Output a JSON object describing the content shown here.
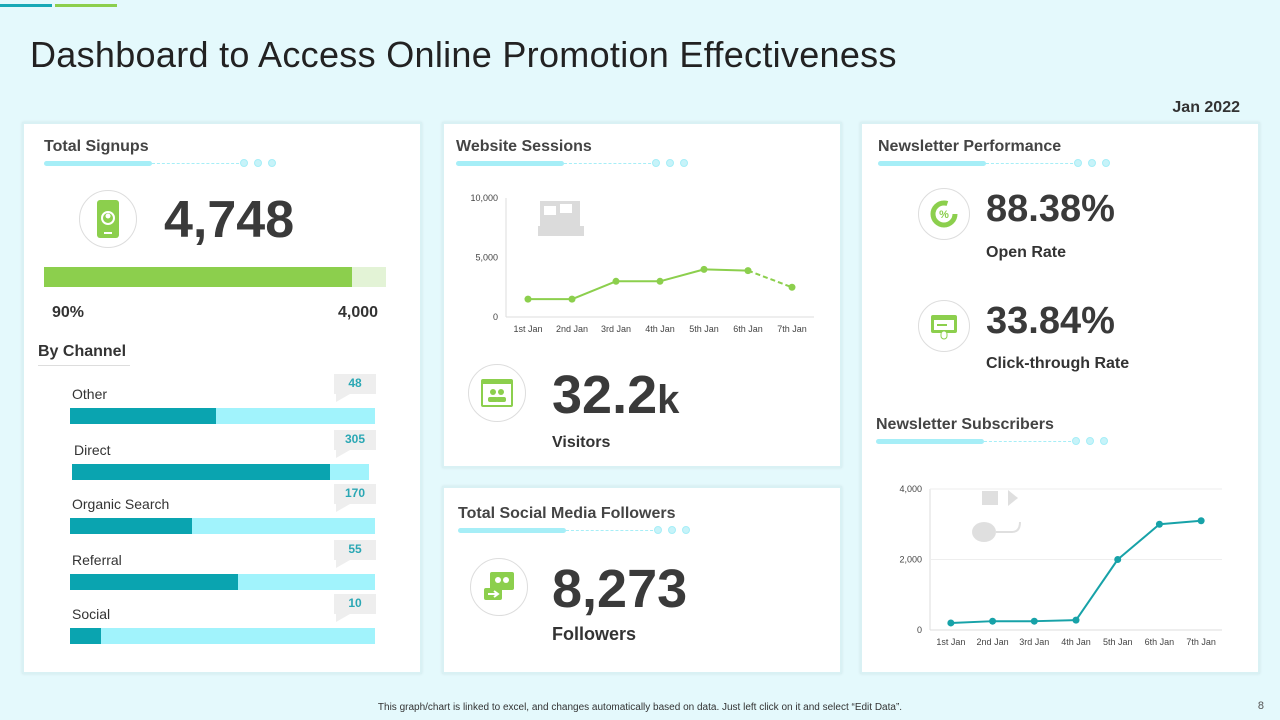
{
  "title": "Dashboard to Access Online Promotion Effectiveness",
  "date": "Jan 2022",
  "signups": {
    "title": "Total Signups",
    "icon": "mobile-user-icon",
    "value": "4,748",
    "progress_percent": 90,
    "progress_label": "90%",
    "target_label": "4,000",
    "by_channel_title": "By Channel",
    "channels": [
      {
        "name": "Other",
        "value": "48",
        "fill": 0.48
      },
      {
        "name": "Direct",
        "value": "305",
        "fill": 0.87
      },
      {
        "name": "Organic Search",
        "value": "170",
        "fill": 0.4
      },
      {
        "name": "Referral",
        "value": "55",
        "fill": 0.55
      },
      {
        "name": "Social",
        "value": "10",
        "fill": 0.1
      }
    ]
  },
  "sessions": {
    "title": "Website Sessions",
    "icon": "visitors-icon",
    "value": "32.2",
    "unit": "k",
    "label": "Visitors"
  },
  "social": {
    "title": "Total Social Media Followers",
    "icon": "social-chat-icon",
    "value": "8,273",
    "label": "Followers"
  },
  "newsletter": {
    "title": "Newsletter Performance",
    "open_rate": {
      "value": "88.38%",
      "label": "Open Rate",
      "icon": "percent-refresh-icon"
    },
    "ctr": {
      "value": "33.84%",
      "label": "Click-through Rate",
      "icon": "click-browser-icon"
    },
    "subscribers_title": "Newsletter Subscribers"
  },
  "chart_data": [
    {
      "type": "line",
      "title": "Website Sessions",
      "categories": [
        "1st Jan",
        "2nd Jan",
        "3rd Jan",
        "4th Jan",
        "5th Jan",
        "6th Jan",
        "7th Jan"
      ],
      "values": [
        1500,
        1500,
        3000,
        3000,
        4000,
        3900,
        2500
      ],
      "ylim": [
        0,
        10000
      ],
      "yticks": [
        "0",
        "5,000",
        "10,000"
      ],
      "color": "#8ccf4d",
      "last_segment_dashed": true,
      "grid": false
    },
    {
      "type": "line",
      "title": "Newsletter Subscribers",
      "categories": [
        "1st Jan",
        "2nd Jan",
        "3rd Jan",
        "4th Jan",
        "5th Jan",
        "6th Jan",
        "7th Jan"
      ],
      "values": [
        200,
        250,
        250,
        280,
        2000,
        3000,
        3100
      ],
      "ylim": [
        0,
        4000
      ],
      "yticks": [
        "0",
        "2,000",
        "4,000"
      ],
      "color": "#17a2a8",
      "grid": true
    }
  ],
  "footer": "This graph/chart is linked to excel, and changes automatically based on data. Just left click on it and select “Edit Data”.",
  "page": "8"
}
